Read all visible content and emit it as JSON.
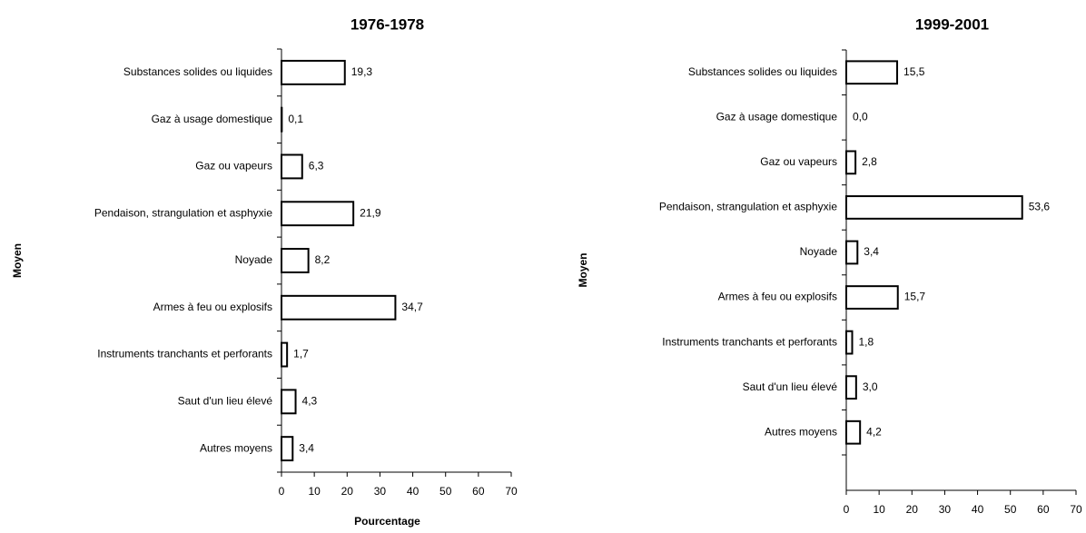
{
  "chart_data": [
    {
      "type": "bar",
      "orientation": "horizontal",
      "title": "1976-1978",
      "y_label": "Moyen",
      "x_label": "Pourcentage",
      "categories": [
        "Substances solides ou liquides",
        "Gaz à usage domestique",
        "Gaz ou vapeurs",
        "Pendaison, strangulation et asphyxie",
        "Noyade",
        "Armes à feu ou explosifs",
        "Instruments tranchants et perforants",
        "Saut d'un lieu élevé",
        "Autres moyens"
      ],
      "values": [
        19.3,
        0.1,
        6.3,
        21.9,
        8.2,
        34.7,
        1.7,
        4.3,
        3.4
      ],
      "value_labels": [
        "19,3",
        "0,1",
        "6,3",
        "21,9",
        "8,2",
        "34,7",
        "1,7",
        "4,3",
        "3,4"
      ],
      "color": "#ffffff",
      "xlim": [
        0,
        70
      ],
      "xticks": [
        0,
        10,
        20,
        30,
        40,
        50,
        60,
        70
      ]
    },
    {
      "type": "bar",
      "orientation": "horizontal",
      "title": "1999-2001",
      "y_label": "Moyen",
      "x_label": "Pourcentage",
      "categories": [
        "Substances solides ou liquides",
        "Gaz à usage domestique",
        "Gaz ou vapeurs",
        "Pendaison, strangulation et asphyxie",
        "Noyade",
        "Armes à feu ou explosifs",
        "Instruments tranchants et perforants",
        "Saut d'un lieu élevé",
        "Autres moyens"
      ],
      "values": [
        15.5,
        0.0,
        2.8,
        53.6,
        3.4,
        15.7,
        1.8,
        3.0,
        4.2
      ],
      "value_labels": [
        "15,5",
        "0,0",
        "2,8",
        "53,6",
        "3,4",
        "15,7",
        "1,8",
        "3,0",
        "4,2"
      ],
      "color": "#ffffff",
      "xlim": [
        0,
        70
      ],
      "xticks": [
        0,
        10,
        20,
        30,
        40,
        50,
        60,
        70
      ]
    }
  ]
}
